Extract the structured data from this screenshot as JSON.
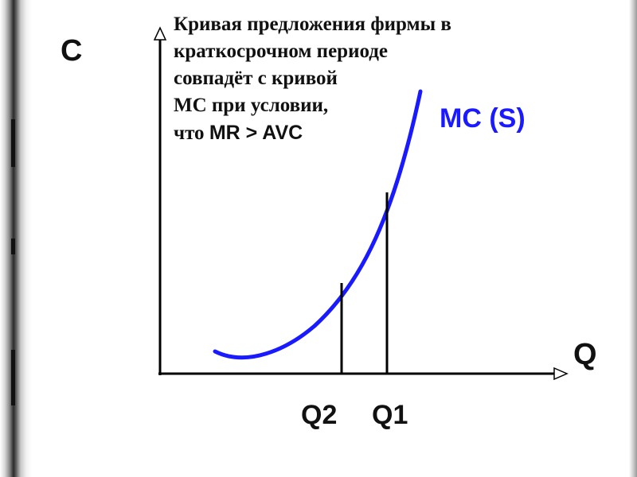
{
  "caption": {
    "line1": "Кривая предложения фирмы в",
    "line2": "краткосрочном периоде",
    "line3": "совпадёт с кривой",
    "line4": "МС при условии,",
    "line5_prefix": "что ",
    "line5_condition": "MR > AVC"
  },
  "axes": {
    "y_label": "C",
    "x_label": "Q"
  },
  "curve": {
    "label": "MC (S)",
    "color": "#1a1aff"
  },
  "markers": [
    {
      "label": "Q2"
    },
    {
      "label": "Q1"
    }
  ],
  "colors": {
    "axis": "#000000",
    "text": "#111111",
    "curve": "#1a1aff"
  }
}
